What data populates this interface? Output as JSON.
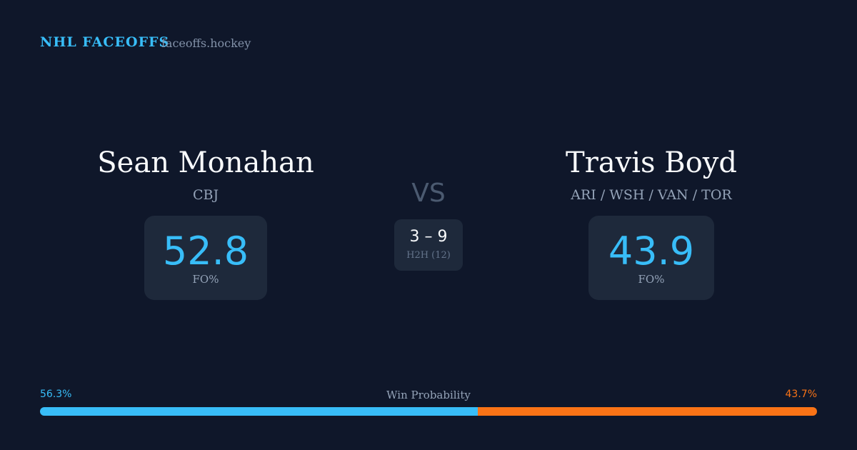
{
  "header": {
    "brand": "NHL FACEOFFS",
    "site": "faceoffs.hockey"
  },
  "players": [
    {
      "name": "Sean Monahan",
      "team": "CBJ",
      "fo_pct": 52.8,
      "fo_label": "FO%"
    },
    {
      "name": "Travis Boyd",
      "team": "ARI / WSH / VAN / TOR",
      "fo_pct": 43.9,
      "fo_label": "FO%"
    }
  ],
  "versus": "VS",
  "h2h": {
    "score": "3 – 9",
    "label": "H2H (12)"
  },
  "win_probability": {
    "label": "Win Probability",
    "values": [
      56.3,
      43.7
    ],
    "value_labels": [
      "56.3%",
      "43.7%"
    ],
    "colors": [
      "#38bdf8",
      "#f97316"
    ]
  }
}
